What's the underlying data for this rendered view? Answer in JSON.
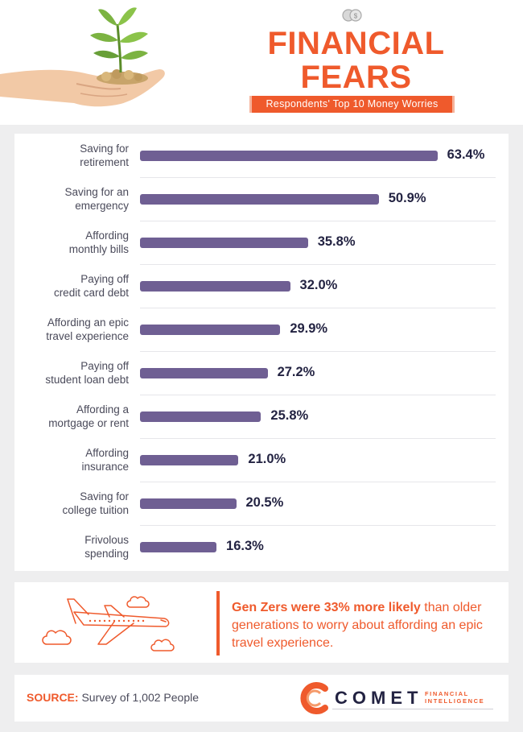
{
  "header": {
    "title_line1": "FINANCIAL",
    "title_line2": "FEARS",
    "subtitle": "Respondents' Top 10 Money Worries"
  },
  "colors": {
    "accent": "#ef5a2c",
    "bar": "#6f5f93",
    "value_text": "#232342",
    "label_text": "#4a4a5a",
    "background": "#eeeeef"
  },
  "chart_data": {
    "type": "bar",
    "orientation": "horizontal",
    "title": "",
    "xlabel": "",
    "ylabel": "",
    "xlim": [
      0,
      100
    ],
    "grid": false,
    "legend": "none",
    "categories": [
      [
        "Saving for",
        "retirement"
      ],
      [
        "Saving for an",
        "emergency"
      ],
      [
        "Affording",
        "monthly bills"
      ],
      [
        "Paying off",
        "credit card debt"
      ],
      [
        "Affording an epic",
        "travel experience"
      ],
      [
        "Paying off",
        "student loan debt"
      ],
      [
        "Affording a",
        "mortgage or rent"
      ],
      [
        "Affording",
        "insurance"
      ],
      [
        "Saving for",
        "college tuition"
      ],
      [
        "Frivolous",
        "spending"
      ]
    ],
    "values": [
      63.4,
      50.9,
      35.8,
      32.0,
      29.9,
      27.2,
      25.8,
      21.0,
      20.5,
      16.3
    ],
    "value_labels": [
      "63.4%",
      "50.9%",
      "35.8%",
      "32.0%",
      "29.9%",
      "27.2%",
      "25.8%",
      "21.0%",
      "20.5%",
      "16.3%"
    ]
  },
  "note": {
    "highlight": "Gen Zers were 33% more likely",
    "rest": " than older generations to worry about affording an epic travel experience."
  },
  "source": {
    "label": "SOURCE:",
    "text": " Survey of 1,002 People"
  },
  "logo": {
    "word": "COMET",
    "sub_line1": "FINANCIAL",
    "sub_line2": "INTELLIGENCE"
  },
  "icons": [
    "plant-in-hand-icon",
    "coins-icon",
    "airplane-icon",
    "cloud-icon",
    "comet-logo-icon"
  ]
}
